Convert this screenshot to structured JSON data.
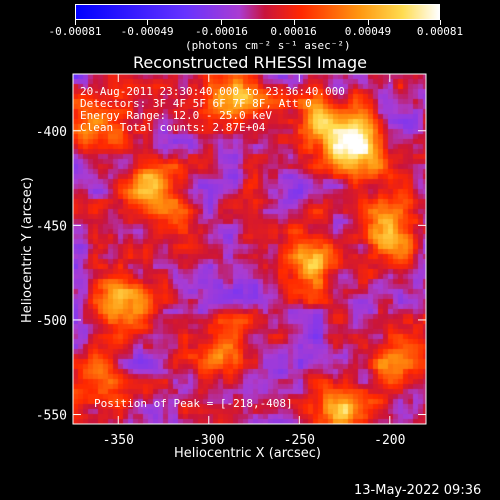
{
  "colorbar": {
    "tick_labels": [
      "-0.00081",
      "-0.00049",
      "-0.00016",
      "0.00016",
      "0.00049",
      "0.00081"
    ],
    "range": [
      -0.00081,
      0.00081
    ],
    "unit_label": "(photons cm⁻² s⁻¹ asec⁻²)",
    "colors": [
      "#0000ff",
      "#6633ff",
      "#b33fdd",
      "#ff3a00",
      "#ff9a10",
      "#ffffff"
    ]
  },
  "chart_data": {
    "type": "heatmap",
    "title": "Reconstructed RHESSI Image",
    "xlabel": "Heliocentric X (arcsec)",
    "ylabel": "Heliocentric Y (arcsec)",
    "xlim": [
      -375,
      -180
    ],
    "ylim": [
      -555,
      -370
    ],
    "x_ticks": [
      -350,
      -300,
      -250,
      -200
    ],
    "y_ticks": [
      -400,
      -450,
      -500,
      -550
    ],
    "x_tick_labels": [
      "-350",
      "-300",
      "-250",
      "-200"
    ],
    "y_tick_labels": [
      "-400",
      "-450",
      "-500",
      "-550"
    ],
    "value_range": [
      -0.00081,
      0.00081
    ],
    "bright_sources": [
      {
        "x": -218,
        "y": -408,
        "peak": 0.00081
      },
      {
        "x": -330,
        "y": -430,
        "peak": 0.0007
      },
      {
        "x": -245,
        "y": -470,
        "peak": 0.0006
      },
      {
        "x": -350,
        "y": -490,
        "peak": 0.00055
      },
      {
        "x": -200,
        "y": -455,
        "peak": 0.0006
      },
      {
        "x": -285,
        "y": -380,
        "peak": 0.0005
      },
      {
        "x": -365,
        "y": -395,
        "peak": 0.0005
      },
      {
        "x": -240,
        "y": -395,
        "peak": 0.0005
      },
      {
        "x": -290,
        "y": -510,
        "peak": 0.00045
      },
      {
        "x": -225,
        "y": -545,
        "peak": 0.0005
      },
      {
        "x": -195,
        "y": -520,
        "peak": 0.00045
      },
      {
        "x": -360,
        "y": -530,
        "peak": 0.0004
      }
    ],
    "annotations": [
      "20-Aug-2011 23:30:40.000 to 23:36:40.000",
      "Detectors: 3F 4F 5F 6F 7F 8F, Att 0",
      "Energy Range: 12.0 - 25.0 keV",
      "Clean     Total counts: 2.87E+04"
    ],
    "peak_label": "Position of Peak = [-218,-408]"
  },
  "footer": {
    "timestamp": "13-May-2022 09:36"
  }
}
